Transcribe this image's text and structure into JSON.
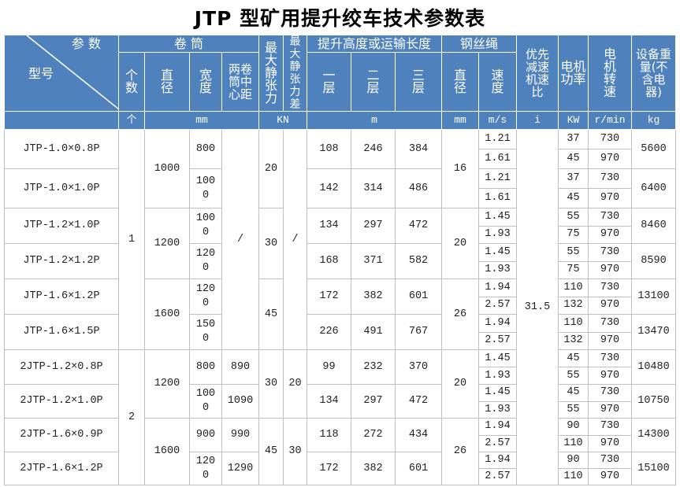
{
  "title": "JTP 型矿用提升绞车技术参数表",
  "header": {
    "params": "参 数",
    "model": "型号",
    "drum": "卷 筒",
    "count": "个数",
    "diameter": "直径",
    "width": "宽度",
    "center_distance": "两卷筒中心距",
    "max_tension": "最大静张力",
    "max_tension_diff": "最大静张力差",
    "lift_height": "提升高度或运输长度",
    "layer1": "一层",
    "layer2": "二层",
    "layer3": "三层",
    "rope": "钢丝绳",
    "rope_diameter": "直径",
    "rope_speed": "速度",
    "ratio": "优先减速机速比",
    "motor_power": "电机功率",
    "motor_speed": "电机转速",
    "weight": "设备重量(不含电器)"
  },
  "units": {
    "count": "个",
    "drum": "mm",
    "tension": "KN",
    "length": "m",
    "rope_diameter": "mm",
    "rope_speed": "m/s",
    "ratio": "i",
    "power": "KW",
    "rpm": "r/min",
    "weight": "kg"
  },
  "ratio": "31.5",
  "groups": [
    {
      "count": "1",
      "center_distance": "/",
      "tension_diff": "/",
      "drums": [
        {
          "diameter": "1000",
          "tension": "20",
          "rope_diameter": "16",
          "models": [
            {
              "name": "JTP-1.0×0.8P",
              "width": "800",
              "layers": [
                "108",
                "246",
                "384"
              ],
              "speeds": [
                "1.21",
                "1.61"
              ],
              "powers": [
                "37",
                "45"
              ],
              "rpms": [
                "730",
                "970"
              ],
              "weight": "5600"
            },
            {
              "name": "JTP-1.0×1.0P",
              "width": "1000",
              "layers": [
                "142",
                "314",
                "486"
              ],
              "speeds": [
                "1.21",
                "1.61"
              ],
              "powers": [
                "37",
                "45"
              ],
              "rpms": [
                "730",
                "970"
              ],
              "weight": "6400"
            }
          ]
        },
        {
          "diameter": "1200",
          "tension": "30",
          "rope_diameter": "20",
          "models": [
            {
              "name": "JTP-1.2×1.0P",
              "width": "1000",
              "layers": [
                "134",
                "297",
                "472"
              ],
              "speeds": [
                "1.45",
                "1.93"
              ],
              "powers": [
                "55",
                "75"
              ],
              "rpms": [
                "730",
                "970"
              ],
              "weight": "8460"
            },
            {
              "name": "JTP-1.2×1.2P",
              "width": "1200",
              "layers": [
                "168",
                "371",
                "582"
              ],
              "speeds": [
                "1.45",
                "1.93"
              ],
              "powers": [
                "55",
                "75"
              ],
              "rpms": [
                "730",
                "970"
              ],
              "weight": "8590"
            }
          ]
        },
        {
          "diameter": "1600",
          "tension": "45",
          "rope_diameter": "26",
          "models": [
            {
              "name": "JTP-1.6×1.2P",
              "width": "1200",
              "layers": [
                "172",
                "382",
                "601"
              ],
              "speeds": [
                "1.94",
                "2.57"
              ],
              "powers": [
                "110",
                "132"
              ],
              "rpms": [
                "730",
                "970"
              ],
              "weight": "13100"
            },
            {
              "name": "JTP-1.6×1.5P",
              "width": "1500",
              "layers": [
                "226",
                "491",
                "767"
              ],
              "speeds": [
                "1.94",
                "2.57"
              ],
              "powers": [
                "110",
                "132"
              ],
              "rpms": [
                "730",
                "970"
              ],
              "weight": "13470"
            }
          ]
        }
      ]
    },
    {
      "count": "2",
      "drums": [
        {
          "diameter": "1200",
          "tension": "30",
          "tension_diff": "20",
          "rope_diameter": "20",
          "models": [
            {
              "name": "2JTP-1.2×0.8P",
              "width": "800",
              "center_distance": "890",
              "layers": [
                "99",
                "232",
                "370"
              ],
              "speeds": [
                "1.45",
                "1.93"
              ],
              "powers": [
                "45",
                "55"
              ],
              "rpms": [
                "730",
                "970"
              ],
              "weight": "10480"
            },
            {
              "name": "2JTP-1.2×1.0P",
              "width": "1000",
              "center_distance": "1090",
              "layers": [
                "134",
                "297",
                "472"
              ],
              "speeds": [
                "1.45",
                "1.93"
              ],
              "powers": [
                "45",
                "55"
              ],
              "rpms": [
                "730",
                "970"
              ],
              "weight": "10750"
            }
          ]
        },
        {
          "diameter": "1600",
          "tension": "45",
          "tension_diff": "30",
          "rope_diameter": "26",
          "models": [
            {
              "name": "2JTP-1.6×0.9P",
              "width": "900",
              "center_distance": "990",
              "layers": [
                "118",
                "272",
                "434"
              ],
              "speeds": [
                "1.94",
                "2.57"
              ],
              "powers": [
                "90",
                "110"
              ],
              "rpms": [
                "730",
                "970"
              ],
              "weight": "14300"
            },
            {
              "name": "2JTP-1.6×1.2P",
              "width": "1200",
              "center_distance": "1290",
              "layers": [
                "172",
                "382",
                "601"
              ],
              "speeds": [
                "1.94",
                "2.57"
              ],
              "powers": [
                "90",
                "110"
              ],
              "rpms": [
                "730",
                "970"
              ],
              "weight": "15100"
            }
          ]
        }
      ]
    }
  ]
}
